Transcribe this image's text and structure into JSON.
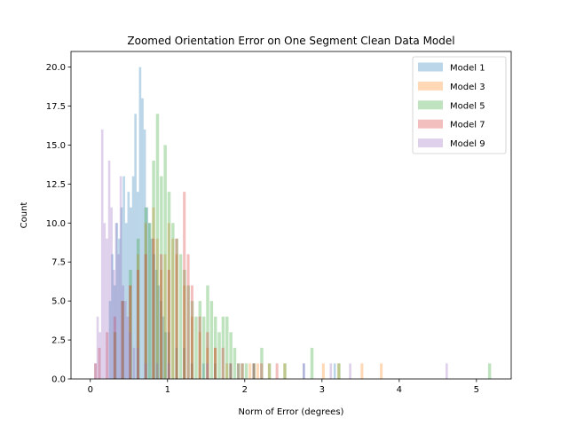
{
  "chart_data": {
    "type": "bar",
    "title": "Zoomed Orientation Error on One Segment Clean Data Model",
    "xlabel": "Norm of Error (degrees)",
    "ylabel": "Count",
    "xlim": [
      -0.25,
      5.45
    ],
    "ylim": [
      0,
      21
    ],
    "xticks": [
      0,
      1,
      2,
      3,
      4,
      5
    ],
    "xtick_labels": [
      "0",
      "1",
      "2",
      "3",
      "4",
      "5"
    ],
    "yticks": [
      0,
      2.5,
      5,
      7.5,
      10,
      12.5,
      15,
      17.5,
      20
    ],
    "ytick_labels": [
      "0.0",
      "2.5",
      "5.0",
      "7.5",
      "10.0",
      "12.5",
      "15.0",
      "17.5",
      "20.0"
    ],
    "grid": false,
    "legend_position": "top-right",
    "alpha": 0.3,
    "series": [
      {
        "name": "Model 1",
        "color": "#1f77b4",
        "bins": [
          [
            0.24,
            0.03,
            5
          ],
          [
            0.27,
            0.03,
            8
          ],
          [
            0.3,
            0.03,
            6
          ],
          [
            0.33,
            0.03,
            10
          ],
          [
            0.36,
            0.03,
            9
          ],
          [
            0.39,
            0.03,
            11
          ],
          [
            0.42,
            0.03,
            13
          ],
          [
            0.45,
            0.03,
            10
          ],
          [
            0.48,
            0.03,
            12
          ],
          [
            0.51,
            0.03,
            11
          ],
          [
            0.54,
            0.03,
            13
          ],
          [
            0.57,
            0.03,
            17
          ],
          [
            0.6,
            0.03,
            12
          ],
          [
            0.63,
            0.03,
            20
          ],
          [
            0.66,
            0.03,
            18
          ],
          [
            0.69,
            0.03,
            16
          ],
          [
            0.72,
            0.03,
            11
          ],
          [
            0.75,
            0.03,
            10
          ],
          [
            0.78,
            0.03,
            9
          ],
          [
            0.81,
            0.03,
            8
          ],
          [
            0.84,
            0.03,
            7
          ],
          [
            0.87,
            0.03,
            6
          ],
          [
            0.9,
            0.03,
            5
          ],
          [
            0.93,
            0.03,
            4
          ],
          [
            0.96,
            0.03,
            3
          ],
          [
            1.0,
            0.03,
            3
          ],
          [
            1.1,
            0.03,
            2
          ],
          [
            1.2,
            0.03,
            2
          ],
          [
            1.3,
            0.03,
            1
          ],
          [
            1.45,
            0.03,
            1
          ],
          [
            1.6,
            0.03,
            1
          ],
          [
            1.8,
            0.03,
            1
          ],
          [
            2.1,
            0.03,
            1
          ],
          [
            2.75,
            0.03,
            1
          ],
          [
            3.15,
            0.03,
            1
          ]
        ]
      },
      {
        "name": "Model 3",
        "color": "#ff7f0e",
        "bins": [
          [
            0.3,
            0.035,
            3
          ],
          [
            0.4,
            0.035,
            5
          ],
          [
            0.5,
            0.035,
            6
          ],
          [
            0.6,
            0.035,
            8
          ],
          [
            0.7,
            0.035,
            10
          ],
          [
            0.8,
            0.035,
            11
          ],
          [
            0.85,
            0.035,
            9
          ],
          [
            0.9,
            0.035,
            7
          ],
          [
            0.95,
            0.035,
            8
          ],
          [
            1.0,
            0.035,
            10
          ],
          [
            1.05,
            0.035,
            9
          ],
          [
            1.1,
            0.035,
            8
          ],
          [
            1.2,
            0.035,
            6
          ],
          [
            1.3,
            0.035,
            4
          ],
          [
            1.4,
            0.035,
            3
          ],
          [
            1.5,
            0.035,
            2
          ],
          [
            1.6,
            0.035,
            2
          ],
          [
            1.75,
            0.035,
            1
          ],
          [
            1.9,
            0.035,
            1
          ],
          [
            2.05,
            0.035,
            1
          ],
          [
            2.15,
            0.035,
            1
          ],
          [
            2.3,
            0.035,
            1
          ],
          [
            2.5,
            0.035,
            1
          ],
          [
            3.0,
            0.035,
            1
          ],
          [
            3.2,
            0.035,
            1
          ],
          [
            3.5,
            0.035,
            1
          ],
          [
            3.75,
            0.035,
            1
          ]
        ]
      },
      {
        "name": "Model 5",
        "color": "#2ca02c",
        "bins": [
          [
            0.3,
            0.04,
            3
          ],
          [
            0.4,
            0.04,
            5
          ],
          [
            0.5,
            0.04,
            7
          ],
          [
            0.6,
            0.04,
            9
          ],
          [
            0.7,
            0.04,
            11
          ],
          [
            0.75,
            0.04,
            10
          ],
          [
            0.8,
            0.04,
            14
          ],
          [
            0.85,
            0.04,
            17
          ],
          [
            0.9,
            0.04,
            13
          ],
          [
            0.95,
            0.04,
            15
          ],
          [
            1.0,
            0.04,
            12
          ],
          [
            1.05,
            0.04,
            10
          ],
          [
            1.1,
            0.04,
            9
          ],
          [
            1.15,
            0.04,
            8
          ],
          [
            1.2,
            0.04,
            7
          ],
          [
            1.25,
            0.04,
            6
          ],
          [
            1.3,
            0.04,
            5
          ],
          [
            1.35,
            0.04,
            4
          ],
          [
            1.4,
            0.04,
            5
          ],
          [
            1.45,
            0.04,
            4
          ],
          [
            1.5,
            0.04,
            6
          ],
          [
            1.55,
            0.04,
            5
          ],
          [
            1.6,
            0.04,
            4
          ],
          [
            1.65,
            0.04,
            3
          ],
          [
            1.7,
            0.04,
            4
          ],
          [
            1.75,
            0.04,
            4
          ],
          [
            1.8,
            0.04,
            3
          ],
          [
            1.85,
            0.04,
            2
          ],
          [
            1.9,
            0.04,
            1
          ],
          [
            1.95,
            0.04,
            1
          ],
          [
            2.0,
            0.04,
            1
          ],
          [
            2.1,
            0.04,
            1
          ],
          [
            2.2,
            0.04,
            2
          ],
          [
            2.3,
            0.04,
            1
          ],
          [
            2.5,
            0.04,
            1
          ],
          [
            2.85,
            0.04,
            2
          ],
          [
            3.2,
            0.04,
            1
          ],
          [
            5.15,
            0.04,
            1
          ]
        ]
      },
      {
        "name": "Model 7",
        "color": "#d62728",
        "bins": [
          [
            0.05,
            0.035,
            1
          ],
          [
            0.1,
            0.035,
            2
          ],
          [
            0.2,
            0.035,
            3
          ],
          [
            0.3,
            0.035,
            4
          ],
          [
            0.4,
            0.035,
            5
          ],
          [
            0.5,
            0.035,
            6
          ],
          [
            0.6,
            0.035,
            7
          ],
          [
            0.7,
            0.035,
            8
          ],
          [
            0.8,
            0.035,
            9
          ],
          [
            0.9,
            0.035,
            8
          ],
          [
            1.0,
            0.035,
            7
          ],
          [
            1.1,
            0.035,
            9
          ],
          [
            1.2,
            0.035,
            12
          ],
          [
            1.25,
            0.035,
            8
          ],
          [
            1.3,
            0.035,
            6
          ],
          [
            1.4,
            0.035,
            4
          ],
          [
            1.5,
            0.035,
            3
          ],
          [
            1.6,
            0.035,
            2
          ],
          [
            1.7,
            0.035,
            2
          ],
          [
            1.8,
            0.035,
            1
          ],
          [
            1.95,
            0.035,
            1
          ],
          [
            2.1,
            0.035,
            1
          ],
          [
            2.2,
            0.035,
            1
          ],
          [
            2.4,
            0.035,
            1
          ]
        ]
      },
      {
        "name": "Model 9",
        "color": "#9467bd",
        "bins": [
          [
            0.05,
            0.03,
            1
          ],
          [
            0.08,
            0.03,
            4
          ],
          [
            0.11,
            0.03,
            3
          ],
          [
            0.14,
            0.03,
            16
          ],
          [
            0.17,
            0.03,
            10
          ],
          [
            0.2,
            0.03,
            9
          ],
          [
            0.23,
            0.03,
            14
          ],
          [
            0.26,
            0.03,
            11
          ],
          [
            0.29,
            0.03,
            7
          ],
          [
            0.32,
            0.03,
            10
          ],
          [
            0.35,
            0.03,
            8
          ],
          [
            0.38,
            0.03,
            13
          ],
          [
            0.41,
            0.03,
            6
          ],
          [
            0.44,
            0.03,
            5
          ],
          [
            0.47,
            0.03,
            4
          ],
          [
            0.5,
            0.03,
            3
          ],
          [
            0.55,
            0.03,
            2
          ],
          [
            0.6,
            0.03,
            2
          ],
          [
            0.7,
            0.03,
            1
          ],
          [
            0.85,
            0.03,
            1
          ],
          [
            1.0,
            0.03,
            1
          ],
          [
            1.5,
            0.03,
            1
          ],
          [
            1.9,
            0.03,
            1
          ],
          [
            2.75,
            0.03,
            1
          ],
          [
            3.1,
            0.03,
            1
          ],
          [
            3.35,
            0.03,
            1
          ],
          [
            4.6,
            0.03,
            1
          ]
        ]
      }
    ]
  }
}
